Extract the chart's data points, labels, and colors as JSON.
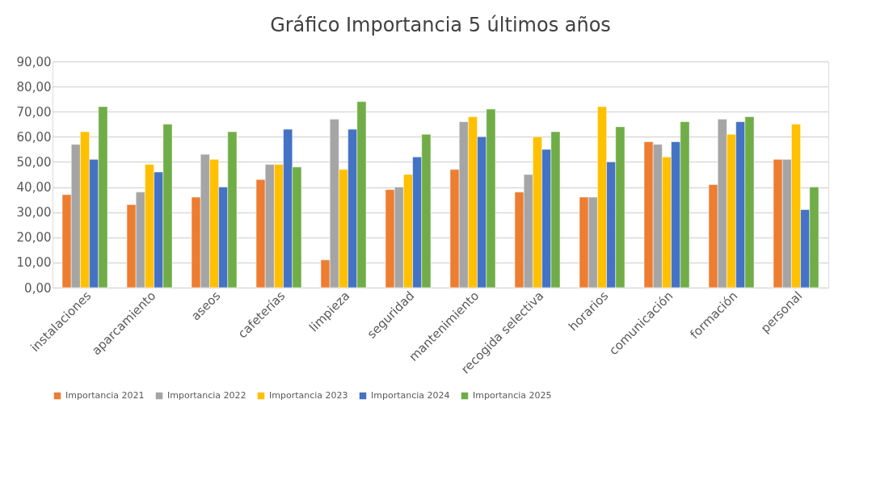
{
  "chart_data": {
    "type": "bar",
    "title": "Gráfico Importancia 5 últimos años",
    "categories": [
      "instalaciones",
      "aparcamiento",
      "aseos",
      "cafeterías",
      "limpieza",
      "seguridad",
      "mantenimiento",
      "recogida selectiva",
      "horarios",
      "comunicación",
      "formación",
      "personal"
    ],
    "series": [
      {
        "name": "Importancia 2021",
        "color": "#ed7d31",
        "values": [
          37,
          33,
          36,
          43,
          11,
          39,
          47,
          38,
          36,
          58,
          41,
          51
        ]
      },
      {
        "name": "Importancia 2022",
        "color": "#a5a5a5",
        "values": [
          57,
          38,
          53,
          49,
          67,
          40,
          66,
          45,
          36,
          57,
          67,
          51
        ]
      },
      {
        "name": "Importancia 2023",
        "color": "#ffc000",
        "values": [
          62,
          49,
          51,
          49,
          47,
          45,
          68,
          60,
          72,
          52,
          61,
          65
        ]
      },
      {
        "name": "Importancia 2024",
        "color": "#4472c4",
        "values": [
          51,
          46,
          40,
          63,
          63,
          52,
          60,
          55,
          50,
          58,
          66,
          31
        ]
      },
      {
        "name": "Importancia 2025",
        "color": "#70ad47",
        "values": [
          72,
          65,
          62,
          48,
          74,
          61,
          71,
          62,
          64,
          66,
          68,
          40
        ]
      }
    ],
    "ylim": [
      0,
      90
    ],
    "yticks": [
      {
        "value": 0,
        "label": "0,00"
      },
      {
        "value": 10,
        "label": "10,00"
      },
      {
        "value": 20,
        "label": "20,00"
      },
      {
        "value": 30,
        "label": "30,00"
      },
      {
        "value": 40,
        "label": "40,00"
      },
      {
        "value": 50,
        "label": "50,00"
      },
      {
        "value": 60,
        "label": "60,00"
      },
      {
        "value": 70,
        "label": "70,00"
      },
      {
        "value": 80,
        "label": "80,00"
      },
      {
        "value": 90,
        "label": "90,00"
      }
    ],
    "grid": "y",
    "legend": "bottom"
  }
}
